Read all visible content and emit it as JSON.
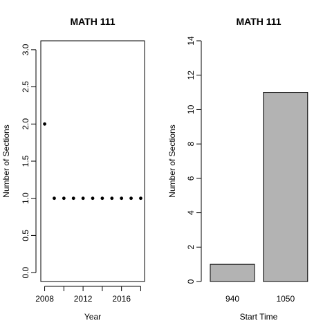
{
  "chart_data": [
    {
      "type": "scatter",
      "title": "MATH 111",
      "xlabel": "Year",
      "ylabel": "Number of Sections",
      "xlim": [
        2007.6,
        2018.4
      ],
      "ylim": [
        -0.12,
        3.12
      ],
      "x_ticks": [
        2008,
        2012,
        2016
      ],
      "x_tick_labels": [
        "2008",
        "2012",
        "2016"
      ],
      "y_ticks": [
        0.0,
        0.5,
        1.0,
        1.5,
        2.0,
        2.5,
        3.0
      ],
      "y_tick_labels": [
        "0.0",
        "0.5",
        "1.0",
        "1.5",
        "2.0",
        "2.5",
        "3.0"
      ],
      "box": true,
      "grid": false,
      "points": [
        {
          "x": 2008,
          "y": 2
        },
        {
          "x": 2009,
          "y": 1
        },
        {
          "x": 2010,
          "y": 1
        },
        {
          "x": 2011,
          "y": 1
        },
        {
          "x": 2012,
          "y": 1
        },
        {
          "x": 2013,
          "y": 1
        },
        {
          "x": 2014,
          "y": 1
        },
        {
          "x": 2015,
          "y": 1
        },
        {
          "x": 2016,
          "y": 1
        },
        {
          "x": 2017,
          "y": 1
        },
        {
          "x": 2018,
          "y": 1
        }
      ],
      "point_color": "#000000"
    },
    {
      "type": "bar",
      "title": "MATH 111",
      "xlabel": "Start Time",
      "ylabel": "Number of Sections",
      "categories": [
        "940",
        "1050"
      ],
      "values": [
        1,
        11
      ],
      "ylim": [
        0,
        14
      ],
      "y_ticks": [
        0,
        2,
        4,
        6,
        8,
        10,
        12,
        14
      ],
      "y_tick_labels": [
        "0",
        "2",
        "4",
        "6",
        "8",
        "10",
        "12",
        "14"
      ],
      "bar_color": "#b3b3b3",
      "box": false,
      "grid": false
    }
  ]
}
